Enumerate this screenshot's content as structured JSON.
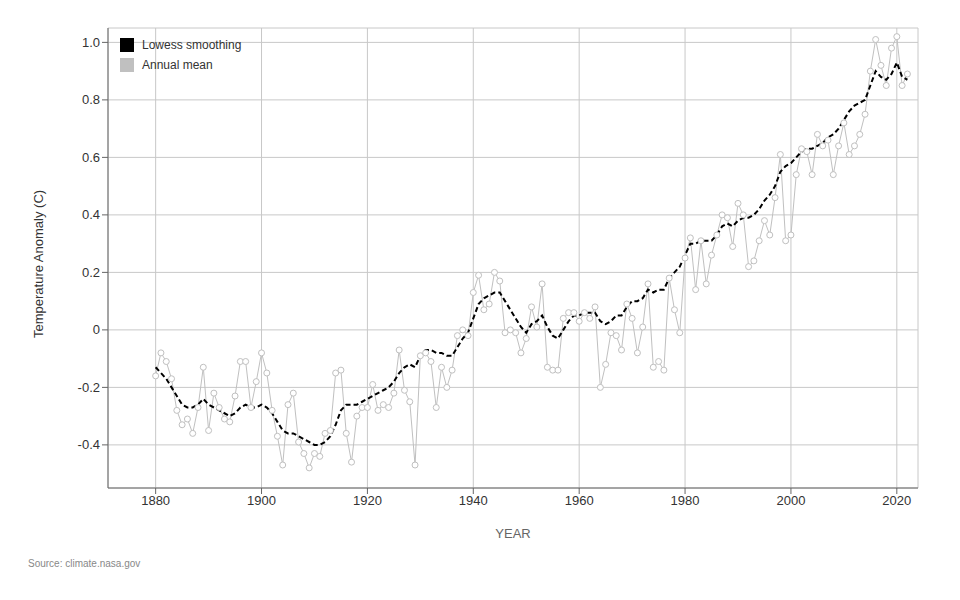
{
  "chart_data": {
    "type": "line",
    "xlabel": "YEAR",
    "ylabel": "Temperature Anomaly (C)",
    "annotation": "Source: climate.nasa.gov",
    "xlim": [
      1871,
      2024
    ],
    "ylim": [
      -0.55,
      1.05
    ],
    "xticks": [
      1880,
      1900,
      1920,
      1940,
      1960,
      1980,
      2000,
      2020
    ],
    "yticks": [
      -0.4,
      -0.2,
      0,
      0.2,
      0.4,
      0.6,
      0.8,
      {
        "value": 1,
        "label": "1.0"
      }
    ],
    "grid": true,
    "legend": "upper left",
    "x": [
      1880,
      1881,
      1882,
      1883,
      1884,
      1885,
      1886,
      1887,
      1888,
      1889,
      1890,
      1891,
      1892,
      1893,
      1894,
      1895,
      1896,
      1897,
      1898,
      1899,
      1900,
      1901,
      1902,
      1903,
      1904,
      1905,
      1906,
      1907,
      1908,
      1909,
      1910,
      1911,
      1912,
      1913,
      1914,
      1915,
      1916,
      1917,
      1918,
      1919,
      1920,
      1921,
      1922,
      1923,
      1924,
      1925,
      1926,
      1927,
      1928,
      1929,
      1930,
      1931,
      1932,
      1933,
      1934,
      1935,
      1936,
      1937,
      1938,
      1939,
      1940,
      1941,
      1942,
      1943,
      1944,
      1945,
      1946,
      1947,
      1948,
      1949,
      1950,
      1951,
      1952,
      1953,
      1954,
      1955,
      1956,
      1957,
      1958,
      1959,
      1960,
      1961,
      1962,
      1963,
      1964,
      1965,
      1966,
      1967,
      1968,
      1969,
      1970,
      1971,
      1972,
      1973,
      1974,
      1975,
      1976,
      1977,
      1978,
      1979,
      1980,
      1981,
      1982,
      1983,
      1984,
      1985,
      1986,
      1987,
      1988,
      1989,
      1990,
      1991,
      1992,
      1993,
      1994,
      1995,
      1996,
      1997,
      1998,
      1999,
      2000,
      2001,
      2002,
      2003,
      2004,
      2005,
      2006,
      2007,
      2008,
      2009,
      2010,
      2011,
      2012,
      2013,
      2014,
      2015,
      2016,
      2017,
      2018,
      2019,
      2020,
      2021,
      2022
    ],
    "series": [
      {
        "name": "Annual mean",
        "color": "#c0c0c0",
        "marker": "circle",
        "line_style": "solid",
        "values": [
          -0.16,
          -0.08,
          -0.11,
          -0.17,
          -0.28,
          -0.33,
          -0.31,
          -0.36,
          -0.27,
          -0.13,
          -0.35,
          -0.22,
          -0.27,
          -0.31,
          -0.32,
          -0.23,
          -0.11,
          -0.11,
          -0.27,
          -0.18,
          -0.08,
          -0.15,
          -0.28,
          -0.37,
          -0.47,
          -0.26,
          -0.22,
          -0.39,
          -0.43,
          -0.48,
          -0.43,
          -0.44,
          -0.36,
          -0.35,
          -0.15,
          -0.14,
          -0.36,
          -0.46,
          -0.3,
          -0.27,
          -0.27,
          -0.19,
          -0.28,
          -0.26,
          -0.27,
          -0.22,
          -0.07,
          -0.21,
          -0.25,
          -0.47,
          -0.09,
          -0.08,
          -0.11,
          -0.27,
          -0.13,
          -0.2,
          -0.14,
          -0.02,
          -0.0,
          -0.02,
          0.13,
          0.19,
          0.07,
          0.09,
          0.2,
          0.17,
          -0.01,
          0.0,
          -0.01,
          -0.08,
          -0.03,
          0.08,
          0.01,
          0.16,
          -0.13,
          -0.14,
          -0.14,
          0.04,
          0.06,
          0.06,
          0.03,
          0.06,
          0.04,
          0.08,
          -0.2,
          -0.12,
          -0.01,
          -0.02,
          -0.07,
          0.09,
          0.04,
          -0.08,
          0.01,
          0.16,
          -0.13,
          -0.11,
          -0.14,
          0.18,
          0.07,
          -0.01,
          0.25,
          0.32,
          0.14,
          0.31,
          0.16,
          0.26,
          0.33,
          0.4,
          0.39,
          0.29,
          0.44,
          0.4,
          0.22,
          0.24,
          0.31,
          0.38,
          0.33,
          0.46,
          0.61,
          0.31,
          0.33,
          0.54,
          0.63,
          0.62,
          0.54,
          0.68,
          0.64,
          0.66,
          0.54,
          0.64,
          0.72,
          0.61,
          0.64,
          0.68,
          0.75,
          0.9,
          1.01,
          0.92,
          0.85,
          0.98,
          1.02,
          0.85,
          0.89
        ]
      },
      {
        "name": "Lowess smoothing",
        "color": "#000000",
        "marker": "none",
        "line_style": "dashed",
        "values": [
          -0.13,
          -0.15,
          -0.17,
          -0.2,
          -0.23,
          -0.26,
          -0.27,
          -0.27,
          -0.26,
          -0.24,
          -0.26,
          -0.27,
          -0.28,
          -0.29,
          -0.3,
          -0.29,
          -0.27,
          -0.26,
          -0.27,
          -0.27,
          -0.26,
          -0.27,
          -0.29,
          -0.32,
          -0.35,
          -0.36,
          -0.36,
          -0.37,
          -0.38,
          -0.39,
          -0.4,
          -0.4,
          -0.39,
          -0.37,
          -0.33,
          -0.28,
          -0.26,
          -0.26,
          -0.26,
          -0.25,
          -0.24,
          -0.23,
          -0.22,
          -0.21,
          -0.2,
          -0.18,
          -0.15,
          -0.13,
          -0.12,
          -0.13,
          -0.09,
          -0.07,
          -0.07,
          -0.08,
          -0.08,
          -0.09,
          -0.09,
          -0.06,
          -0.03,
          -0.01,
          0.04,
          0.09,
          0.11,
          0.12,
          0.13,
          0.13,
          0.1,
          0.07,
          0.04,
          0.01,
          -0.01,
          0.02,
          0.03,
          0.05,
          0.01,
          -0.02,
          -0.03,
          0.0,
          0.03,
          0.05,
          0.05,
          0.06,
          0.06,
          0.06,
          0.03,
          0.02,
          0.03,
          0.05,
          0.05,
          0.08,
          0.1,
          0.1,
          0.11,
          0.14,
          0.13,
          0.14,
          0.14,
          0.18,
          0.2,
          0.22,
          0.26,
          0.3,
          0.3,
          0.31,
          0.31,
          0.31,
          0.33,
          0.36,
          0.37,
          0.36,
          0.38,
          0.39,
          0.39,
          0.4,
          0.42,
          0.45,
          0.47,
          0.5,
          0.55,
          0.57,
          0.58,
          0.6,
          0.62,
          0.63,
          0.63,
          0.64,
          0.65,
          0.67,
          0.68,
          0.7,
          0.73,
          0.76,
          0.78,
          0.79,
          0.8,
          0.85,
          0.9,
          0.88,
          0.87,
          0.89,
          0.93,
          0.88,
          0.87
        ]
      }
    ]
  }
}
